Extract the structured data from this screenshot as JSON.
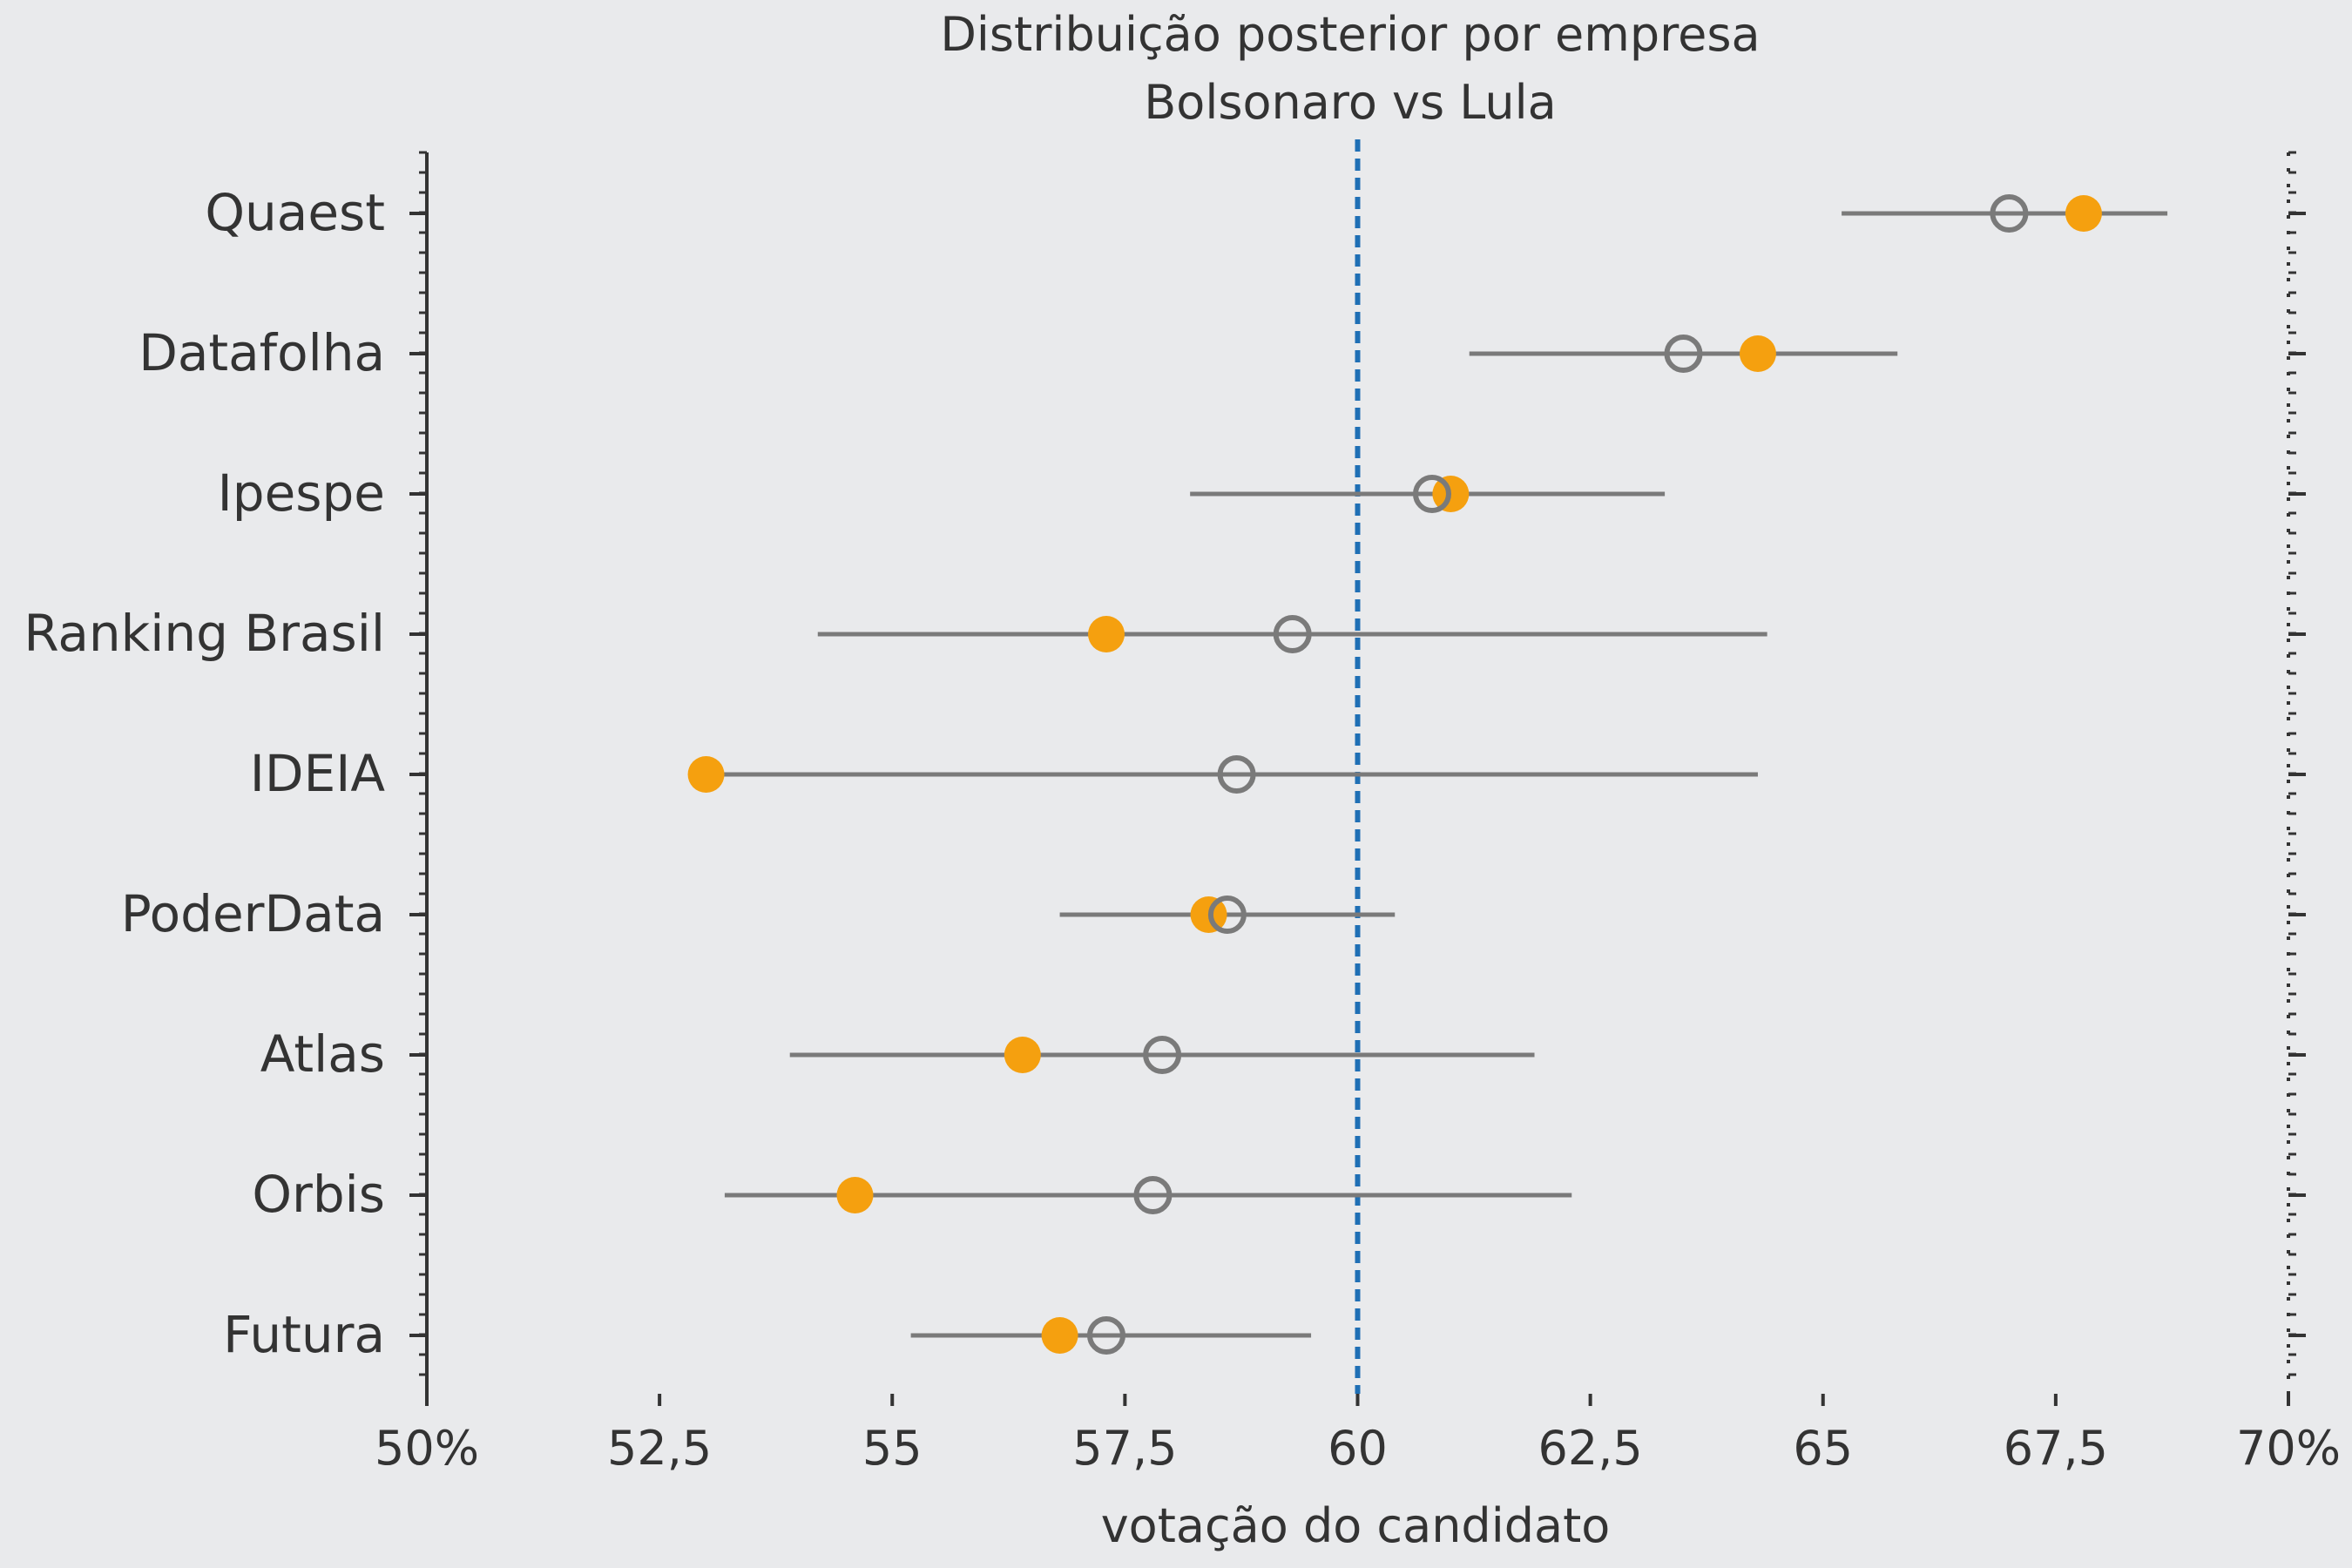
{
  "chart_data": {
    "type": "scatter",
    "title": "Distribuição posterior por empresa",
    "subtitle": "Bolsonaro vs Lula",
    "xlabel": "votação do candidato",
    "ylabel": "",
    "xlim": [
      50,
      70
    ],
    "x_ticks": [
      {
        "value": 50,
        "label": "50%"
      },
      {
        "value": 52.5,
        "label": "52,5"
      },
      {
        "value": 55,
        "label": "55"
      },
      {
        "value": 57.5,
        "label": "57,5"
      },
      {
        "value": 60,
        "label": "60"
      },
      {
        "value": 62.5,
        "label": "62,5"
      },
      {
        "value": 65,
        "label": "65"
      },
      {
        "value": 67.5,
        "label": "67,5"
      },
      {
        "value": 70,
        "label": "70%"
      }
    ],
    "categories": [
      "Quaest",
      "Datafolha",
      "Ipespe",
      "Ranking Brasil",
      "IDEIA",
      "PoderData",
      "Atlas",
      "Orbis",
      "Futura"
    ],
    "interval_low": [
      65.2,
      61.2,
      58.2,
      54.2,
      53.0,
      56.8,
      53.9,
      53.2,
      55.2
    ],
    "interval_high": [
      68.7,
      65.8,
      63.3,
      64.4,
      64.3,
      60.4,
      61.9,
      62.3,
      59.5
    ],
    "posterior_mean": [
      67.0,
      63.5,
      60.8,
      59.3,
      58.7,
      58.6,
      57.9,
      57.8,
      57.3
    ],
    "observed": [
      67.8,
      64.3,
      61.0,
      57.3,
      53.0,
      58.4,
      56.4,
      54.6,
      56.8
    ],
    "reference_line": 60,
    "grid": false,
    "legend": "none",
    "colors": {
      "observed": "#f5a00f",
      "posterior": "#7a7a7a",
      "reference": "#1f6fb5",
      "axis": "#333333",
      "background": "#e9eaec"
    }
  }
}
